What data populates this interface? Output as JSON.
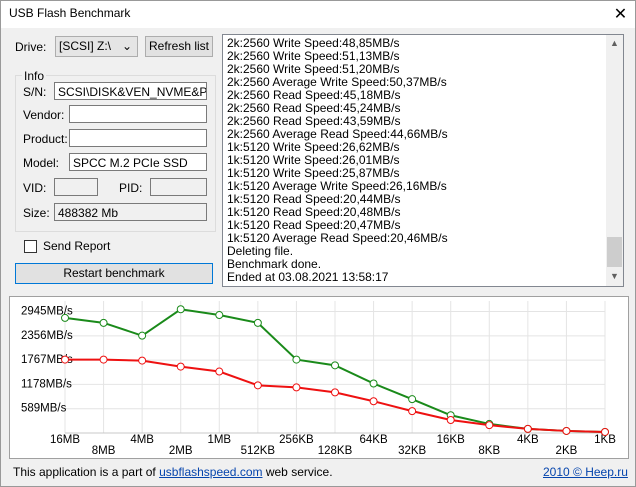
{
  "window": {
    "title": "USB Flash Benchmark"
  },
  "controls": {
    "drive_label": "Drive:",
    "drive_value": "[SCSI] Z:\\",
    "refresh_button": "Refresh list",
    "send_report": "Send Report",
    "restart_button": "Restart benchmark"
  },
  "info": {
    "title": "Info",
    "fields": [
      {
        "label": "S/N:",
        "value": "SCSI\\DISK&VEN_NVME&PRO"
      },
      {
        "label": "Vendor:"
      },
      {
        "label": "Product:"
      },
      {
        "label": "Model:",
        "value": "SPCC M.2 PCIe SSD"
      },
      {
        "label": "VID:"
      },
      {
        "label": "PID:"
      },
      {
        "label": "Size:",
        "value": "488382 Mb"
      }
    ]
  },
  "log": [
    "2k:2560 Write Speed:48,85MB/s",
    "2k:2560 Write Speed:51,13MB/s",
    "2k:2560 Write Speed:51,20MB/s",
    "2k:2560 Average Write Speed:50,37MB/s",
    "2k:2560 Read Speed:45,18MB/s",
    "2k:2560 Read Speed:45,24MB/s",
    "2k:2560 Read Speed:43,59MB/s",
    "2k:2560 Average Read Speed:44,66MB/s",
    "1k:5120 Write Speed:26,62MB/s",
    "1k:5120 Write Speed:26,01MB/s",
    "1k:5120 Write Speed:25,87MB/s",
    "1k:5120 Average Write Speed:26,16MB/s",
    "1k:5120 Read Speed:20,44MB/s",
    "1k:5120 Read Speed:20,48MB/s",
    "1k:5120 Read Speed:20,47MB/s",
    "1k:5120 Average Read Speed:20,46MB/s",
    "Deleting file.",
    "Benchmark done.",
    "Ended at 03.08.2021 13:58:17"
  ],
  "chart": {
    "type": "line",
    "categories": [
      "16MB",
      "8MB",
      "4MB",
      "2MB",
      "1MB",
      "512KB",
      "256KB",
      "128KB",
      "64KB",
      "32KB",
      "16KB",
      "8KB",
      "4KB",
      "2KB",
      "1KB"
    ],
    "series": [
      {
        "color": "#1a8a1a",
        "values": [
          2790,
          2670,
          2360,
          3000,
          2860,
          2670,
          1780,
          1640,
          1200,
          820,
          430,
          220,
          100,
          50,
          25
        ]
      },
      {
        "color": "#ee1111",
        "values": [
          1780,
          1780,
          1755,
          1610,
          1490,
          1155,
          1105,
          985,
          770,
          530,
          315,
          190,
          100,
          50,
          25
        ]
      }
    ],
    "ylim": [
      0,
      3200
    ],
    "yticks": [
      {
        "value": 589,
        "label": "589MB/s"
      },
      {
        "value": 1178,
        "label": "1178MB/s"
      },
      {
        "value": 1767,
        "label": "1767MB/s"
      },
      {
        "value": 2356,
        "label": "2356MB/s"
      },
      {
        "value": 2945,
        "label": "2945MB/s"
      }
    ],
    "grid": true
  },
  "footer": {
    "text_before": "This application is a part of",
    "link": "usbflashspeed.com",
    "text_after": "web service.",
    "copyright": "2010 © Heep.ru"
  }
}
